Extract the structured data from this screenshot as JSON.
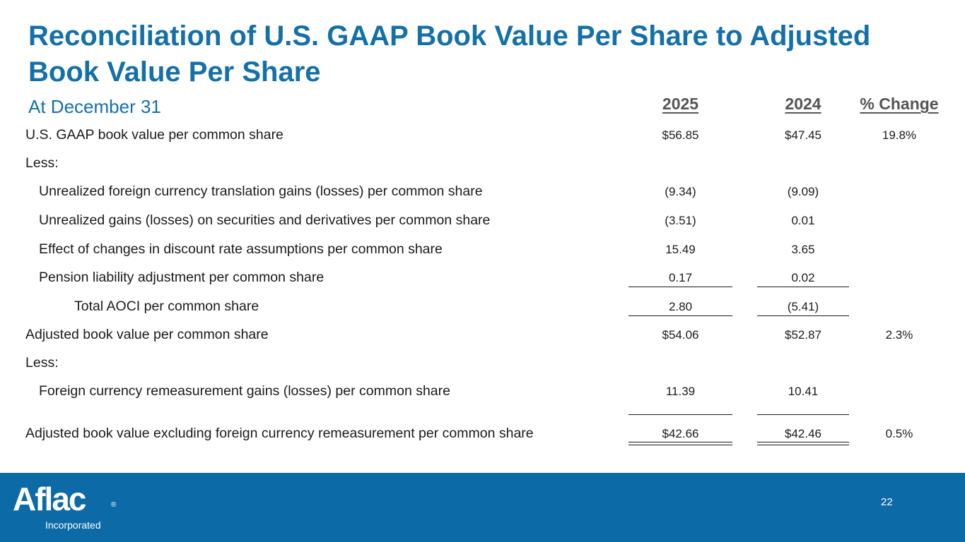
{
  "title": "Reconciliation of U.S. GAAP Book Value Per Share to Adjusted Book Value Per Share",
  "subtitle": "At December 31",
  "columns": {
    "y2025": "2025",
    "y2024": "2024",
    "change": "% Change"
  },
  "rows": [
    {
      "label": "U.S. GAAP book value per common share",
      "v2025": "$56.85",
      "v2024": "$47.45",
      "change": "19.8%"
    },
    {
      "label": "Less:",
      "v2025": "",
      "v2024": "",
      "change": ""
    },
    {
      "label": "Unrealized foreign currency translation gains (losses) per common share",
      "v2025": "(9.34)",
      "v2024": "(9.09)",
      "change": ""
    },
    {
      "label": "Unrealized gains (losses) on securities and derivatives per common share",
      "v2025": "(3.51)",
      "v2024": "0.01",
      "change": ""
    },
    {
      "label": "Effect of changes in discount rate assumptions per common share",
      "v2025": "15.49",
      "v2024": "3.65",
      "change": ""
    },
    {
      "label": "Pension liability adjustment per common share",
      "v2025": "0.17",
      "v2024": "0.02",
      "change": ""
    },
    {
      "label": "Total AOCI per common share",
      "v2025": "2.80",
      "v2024": "(5.41)",
      "change": ""
    },
    {
      "label": "Adjusted book value per common share",
      "v2025": "$54.06",
      "v2024": "$52.87",
      "change": "2.3%"
    },
    {
      "label": "Less:",
      "v2025": "",
      "v2024": "",
      "change": ""
    },
    {
      "label": "Foreign currency remeasurement gains (losses) per common share",
      "v2025": "11.39",
      "v2024": "10.41",
      "change": ""
    },
    {
      "label": "Adjusted book value excluding foreign currency remeasurement per common share",
      "v2025": "$42.66",
      "v2024": "$42.46",
      "change": "0.5%"
    }
  ],
  "footer": {
    "logo_text": "Aflac",
    "logo_registered": "®",
    "logo_subtitle": "Incorporated",
    "page_number": "22"
  },
  "colors": {
    "title": "#1470a8",
    "footer_bg": "#0c6aa6"
  }
}
